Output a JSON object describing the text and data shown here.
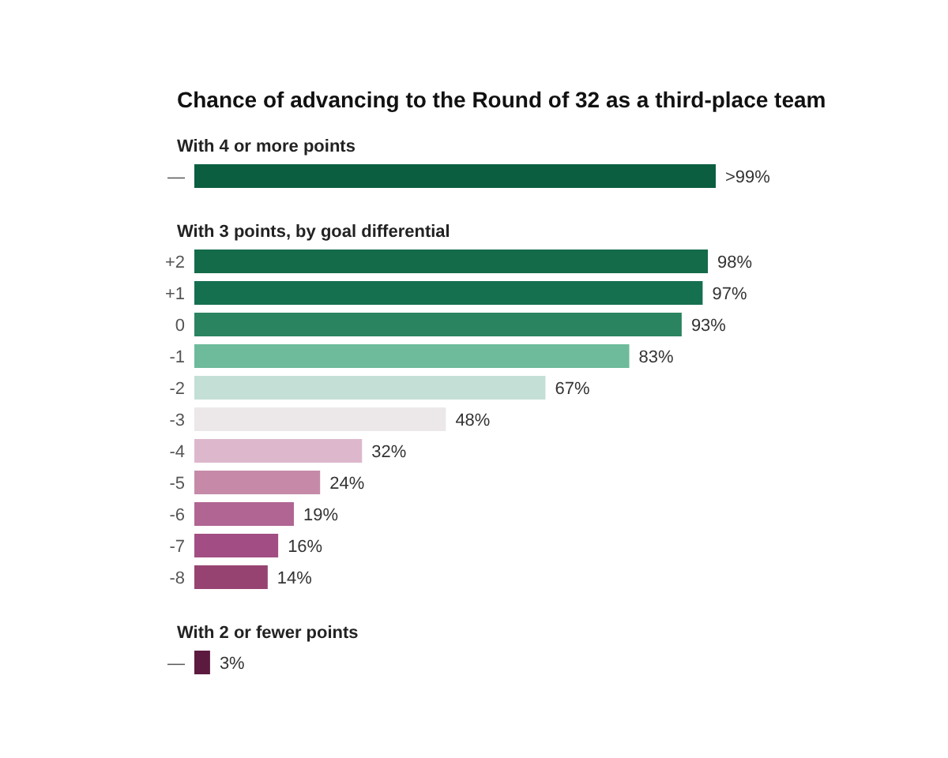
{
  "chart_data": [
    {
      "type": "bar",
      "orientation": "horizontal",
      "title": "Chance of advancing to the Round of 32 as a third-place team",
      "subtitle": "With 4 or more points",
      "categories": [
        "—"
      ],
      "values": [
        99.5
      ],
      "colors": [
        "#0b5e40"
      ],
      "value_labels": [
        ">99%"
      ]
    },
    {
      "type": "bar",
      "orientation": "horizontal",
      "title": "With 3 points, by goal differential",
      "categories": [
        "+2",
        "+1",
        "0",
        "-1",
        "-2",
        "-3",
        "-4",
        "-5",
        "-6",
        "-7",
        "-8"
      ],
      "values": [
        98,
        97,
        93,
        83,
        67,
        48,
        32,
        24,
        19,
        16,
        14
      ],
      "colors": [
        "#146b4a",
        "#157050",
        "#2a8460",
        "#6dbb9a",
        "#c4dfd6",
        "#ece8e9",
        "#ddb8cc",
        "#c68aa8",
        "#b06593",
        "#a24e84",
        "#974372"
      ],
      "value_labels": [
        "98%",
        "97%",
        "93%",
        "83%",
        "67%",
        "48%",
        "32%",
        "24%",
        "19%",
        "16%",
        "14%"
      ]
    },
    {
      "type": "bar",
      "orientation": "horizontal",
      "title": "With 2 or fewer points",
      "categories": [
        "—"
      ],
      "values": [
        3
      ],
      "colors": [
        "#5c1a40"
      ],
      "value_labels": [
        "3%"
      ]
    }
  ]
}
